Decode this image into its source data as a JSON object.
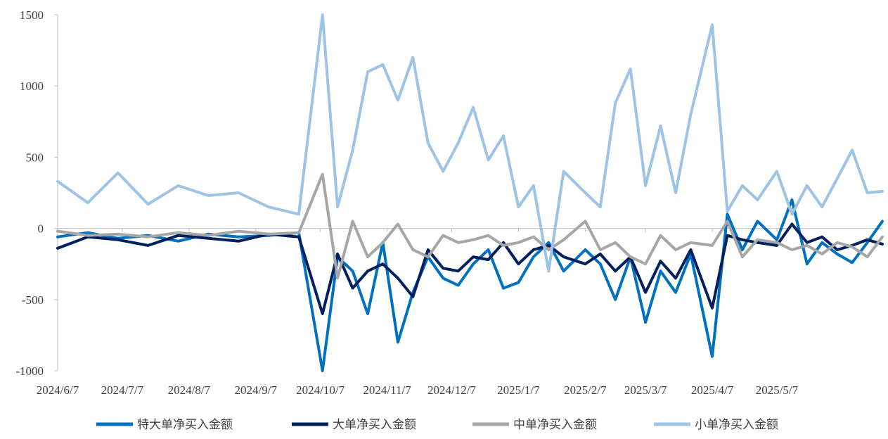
{
  "chart_data": {
    "type": "line",
    "title": "",
    "xlabel": "",
    "ylabel": "",
    "ylim": [
      -1000,
      1500
    ],
    "yticks": [
      -1000,
      -500,
      0,
      500,
      1000,
      1500
    ],
    "ytick_labels": [
      "-1000",
      "-500",
      "0",
      "500",
      "1000",
      "1500"
    ],
    "xlim": [
      "2024-06-07",
      "2025-06-25"
    ],
    "xtick_labels": [
      "2024/6/7",
      "2024/7/7",
      "2024/8/7",
      "2024/9/7",
      "2024/10/7",
      "2024/11/7",
      "2024/12/7",
      "2025/1/7",
      "2025/2/7",
      "2025/3/7",
      "2025/4/7",
      "2025/5/7"
    ],
    "xtick_dates": [
      "2024-06-07",
      "2024-07-07",
      "2024-08-07",
      "2024-09-07",
      "2024-10-07",
      "2024-11-07",
      "2024-12-07",
      "2025-01-07",
      "2025-02-07",
      "2025-03-07",
      "2025-04-07",
      "2025-05-07"
    ],
    "legend_position": "bottom",
    "grid": false,
    "x": [
      "2024-06-07",
      "2024-06-21",
      "2024-07-05",
      "2024-07-19",
      "2024-08-02",
      "2024-08-16",
      "2024-08-30",
      "2024-09-13",
      "2024-09-27",
      "2024-10-08",
      "2024-10-15",
      "2024-10-22",
      "2024-10-29",
      "2024-11-05",
      "2024-11-12",
      "2024-11-19",
      "2024-11-26",
      "2024-12-03",
      "2024-12-10",
      "2024-12-17",
      "2024-12-24",
      "2024-12-31",
      "2025-01-07",
      "2025-01-14",
      "2025-01-21",
      "2025-01-28",
      "2025-02-07",
      "2025-02-14",
      "2025-02-21",
      "2025-02-28",
      "2025-03-07",
      "2025-03-14",
      "2025-03-21",
      "2025-03-28",
      "2025-04-07",
      "2025-04-14",
      "2025-04-21",
      "2025-04-28",
      "2025-05-07",
      "2025-05-14",
      "2025-05-21",
      "2025-05-28",
      "2025-06-04",
      "2025-06-11",
      "2025-06-18",
      "2025-06-25"
    ],
    "series": [
      {
        "name": "特大单净买入金额",
        "color": "#0070c0",
        "values": [
          -60,
          -30,
          -70,
          -50,
          -90,
          -40,
          -60,
          -50,
          -30,
          -1000,
          -200,
          -300,
          -600,
          -100,
          -800,
          -450,
          -200,
          -350,
          -400,
          -250,
          -150,
          -420,
          -380,
          -200,
          -100,
          -300,
          -150,
          -250,
          -500,
          -200,
          -660,
          -300,
          -450,
          -180,
          -900,
          100,
          -150,
          50,
          -80,
          200,
          -250,
          -100,
          -180,
          -240,
          -100,
          50
        ]
      },
      {
        "name": "大单净买入金额",
        "color": "#002060",
        "values": [
          -140,
          -60,
          -80,
          -120,
          -50,
          -70,
          -90,
          -40,
          -60,
          -600,
          -180,
          -420,
          -300,
          -250,
          -350,
          -480,
          -150,
          -280,
          -300,
          -200,
          -220,
          -100,
          -250,
          -150,
          -120,
          -200,
          -250,
          -180,
          -300,
          -200,
          -450,
          -230,
          -350,
          -150,
          -560,
          -50,
          -80,
          -100,
          -120,
          30,
          -100,
          -60,
          -150,
          -120,
          -80,
          -110
        ]
      },
      {
        "name": "中单净买入金额",
        "color": "#a6a6a6",
        "values": [
          -20,
          -50,
          -40,
          -60,
          -30,
          -50,
          -20,
          -40,
          -30,
          380,
          -350,
          50,
          -200,
          -100,
          30,
          -150,
          -200,
          -50,
          -100,
          -80,
          -50,
          -120,
          -100,
          -60,
          -150,
          -80,
          50,
          -150,
          -100,
          -200,
          -250,
          -50,
          -150,
          -100,
          -120,
          50,
          -200,
          -80,
          -100,
          -150,
          -120,
          -180,
          -100,
          -130,
          -200,
          -60
        ]
      },
      {
        "name": "小单净买入金额",
        "color": "#9dc3e6",
        "values": [
          330,
          180,
          390,
          170,
          300,
          230,
          250,
          150,
          100,
          1500,
          150,
          550,
          1100,
          1150,
          900,
          1200,
          600,
          400,
          600,
          850,
          480,
          650,
          150,
          300,
          -300,
          400,
          250,
          150,
          880,
          1120,
          300,
          720,
          250,
          800,
          1430,
          120,
          300,
          200,
          400,
          100,
          300,
          150,
          350,
          550,
          250,
          260
        ]
      }
    ]
  }
}
